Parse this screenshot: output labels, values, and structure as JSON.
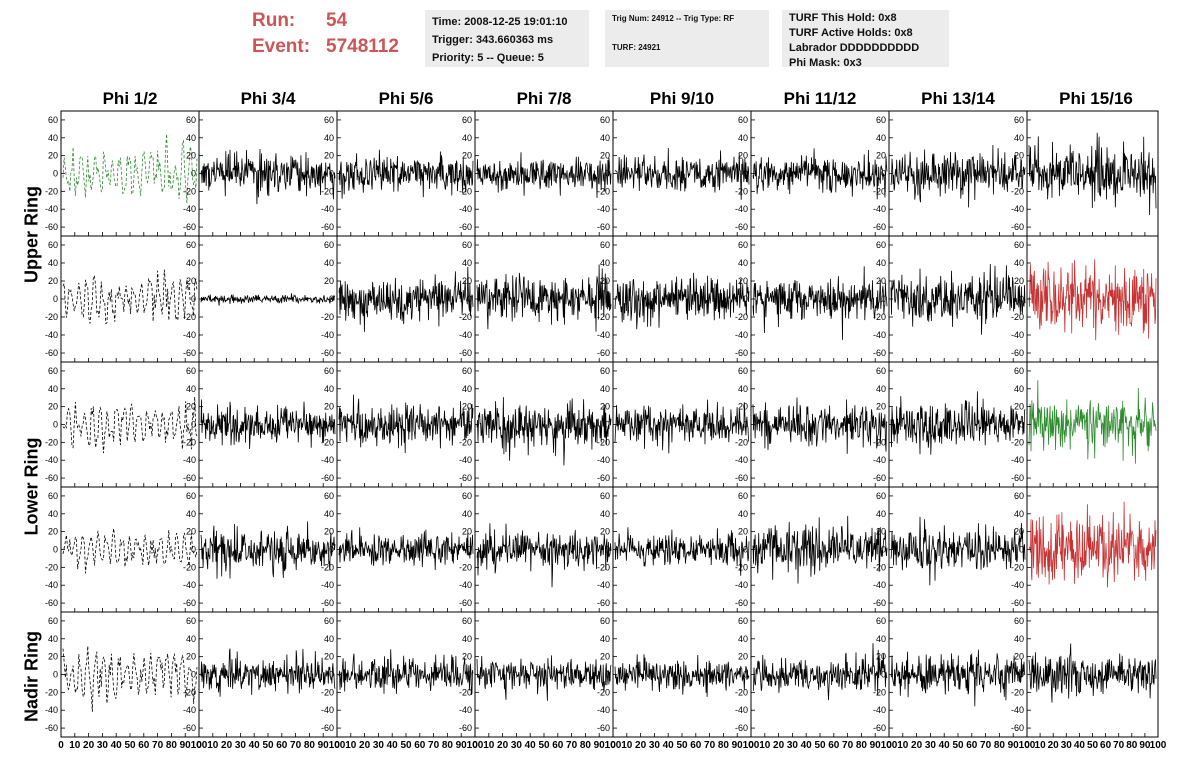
{
  "header": {
    "run_label": "Run:",
    "run_value": "54",
    "event_label": "Event:",
    "event_value": "5748112",
    "info_box": {
      "time": "Time: 2008-12-25 19:01:10",
      "trigger": "Trigger: 343.660363 ms",
      "priority": "Priority: 5 -- Queue: 5"
    },
    "trig_box": {
      "trig": "Trig Num: 24912 -- Trig Type: RF",
      "turf": "TURF: 24921"
    },
    "turf_box": {
      "this_hold": "TURF This Hold: 0x8",
      "active_holds": "TURF Active Holds: 0x8",
      "labrador": "Labrador DDDDDDDDDD",
      "phi_mask": "Phi Mask: 0x3"
    }
  },
  "columns": [
    "Phi 1/2",
    "Phi 3/4",
    "Phi 5/6",
    "Phi 7/8",
    "Phi 9/10",
    "Phi 11/12",
    "Phi 13/14",
    "Phi 15/16"
  ],
  "ring_labels": [
    "Upper Ring",
    "Lower Ring",
    "Nadir Ring"
  ],
  "colors": {
    "normal": "#000000",
    "triggered": "#2e8b2e",
    "saturated": "#c83232"
  },
  "chart_data": {
    "type": "line",
    "ylim": [
      -70,
      70
    ],
    "xlim": [
      0,
      100
    ],
    "yticks": [
      -60,
      -40,
      -20,
      0,
      20,
      40,
      60
    ],
    "xticks": [
      0,
      10,
      20,
      30,
      40,
      50,
      60,
      70,
      80,
      90,
      100
    ],
    "rows": 5,
    "cols": 8,
    "panels": [
      {
        "row": 0,
        "col": 0,
        "amp": 30,
        "color": "triggered",
        "style": "dashed"
      },
      {
        "row": 0,
        "col": 1,
        "amp": 20,
        "color": "normal",
        "style": "solid"
      },
      {
        "row": 0,
        "col": 2,
        "amp": 18,
        "color": "normal",
        "style": "solid"
      },
      {
        "row": 0,
        "col": 3,
        "amp": 17,
        "color": "normal",
        "style": "solid"
      },
      {
        "row": 0,
        "col": 4,
        "amp": 18,
        "color": "normal",
        "style": "solid"
      },
      {
        "row": 0,
        "col": 5,
        "amp": 18,
        "color": "normal",
        "style": "solid"
      },
      {
        "row": 0,
        "col": 6,
        "amp": 22,
        "color": "normal",
        "style": "solid"
      },
      {
        "row": 0,
        "col": 7,
        "amp": 28,
        "color": "normal",
        "style": "solid"
      },
      {
        "row": 1,
        "col": 0,
        "amp": 25,
        "color": "normal",
        "style": "dashed"
      },
      {
        "row": 1,
        "col": 1,
        "amp": 4,
        "color": "normal",
        "style": "solid"
      },
      {
        "row": 1,
        "col": 2,
        "amp": 22,
        "color": "normal",
        "style": "solid"
      },
      {
        "row": 1,
        "col": 3,
        "amp": 24,
        "color": "normal",
        "style": "solid"
      },
      {
        "row": 1,
        "col": 4,
        "amp": 22,
        "color": "normal",
        "style": "solid"
      },
      {
        "row": 1,
        "col": 5,
        "amp": 22,
        "color": "normal",
        "style": "solid"
      },
      {
        "row": 1,
        "col": 6,
        "amp": 24,
        "color": "normal",
        "style": "solid"
      },
      {
        "row": 1,
        "col": 7,
        "amp": 34,
        "color": "saturated",
        "style": "solid"
      },
      {
        "row": 2,
        "col": 0,
        "amp": 25,
        "color": "normal",
        "style": "dashed"
      },
      {
        "row": 2,
        "col": 1,
        "amp": 18,
        "color": "normal",
        "style": "solid"
      },
      {
        "row": 2,
        "col": 2,
        "amp": 22,
        "color": "normal",
        "style": "solid"
      },
      {
        "row": 2,
        "col": 3,
        "amp": 24,
        "color": "normal",
        "style": "solid"
      },
      {
        "row": 2,
        "col": 4,
        "amp": 18,
        "color": "normal",
        "style": "solid"
      },
      {
        "row": 2,
        "col": 5,
        "amp": 20,
        "color": "normal",
        "style": "solid"
      },
      {
        "row": 2,
        "col": 6,
        "amp": 22,
        "color": "normal",
        "style": "solid"
      },
      {
        "row": 2,
        "col": 7,
        "amp": 24,
        "color": "triggered",
        "style": "solid"
      },
      {
        "row": 3,
        "col": 0,
        "amp": 20,
        "color": "normal",
        "style": "dashed"
      },
      {
        "row": 3,
        "col": 1,
        "amp": 22,
        "color": "normal",
        "style": "solid"
      },
      {
        "row": 3,
        "col": 2,
        "amp": 16,
        "color": "normal",
        "style": "solid"
      },
      {
        "row": 3,
        "col": 3,
        "amp": 20,
        "color": "normal",
        "style": "solid"
      },
      {
        "row": 3,
        "col": 4,
        "amp": 16,
        "color": "normal",
        "style": "solid"
      },
      {
        "row": 3,
        "col": 5,
        "amp": 24,
        "color": "normal",
        "style": "solid"
      },
      {
        "row": 3,
        "col": 6,
        "amp": 22,
        "color": "normal",
        "style": "solid"
      },
      {
        "row": 3,
        "col": 7,
        "amp": 34,
        "color": "saturated",
        "style": "solid"
      },
      {
        "row": 4,
        "col": 0,
        "amp": 28,
        "color": "normal",
        "style": "dashed"
      },
      {
        "row": 4,
        "col": 1,
        "amp": 18,
        "color": "normal",
        "style": "solid"
      },
      {
        "row": 4,
        "col": 2,
        "amp": 18,
        "color": "normal",
        "style": "solid"
      },
      {
        "row": 4,
        "col": 3,
        "amp": 16,
        "color": "normal",
        "style": "solid"
      },
      {
        "row": 4,
        "col": 4,
        "amp": 17,
        "color": "normal",
        "style": "solid"
      },
      {
        "row": 4,
        "col": 5,
        "amp": 18,
        "color": "normal",
        "style": "solid"
      },
      {
        "row": 4,
        "col": 6,
        "amp": 22,
        "color": "normal",
        "style": "solid"
      },
      {
        "row": 4,
        "col": 7,
        "amp": 20,
        "color": "normal",
        "style": "solid"
      }
    ]
  }
}
